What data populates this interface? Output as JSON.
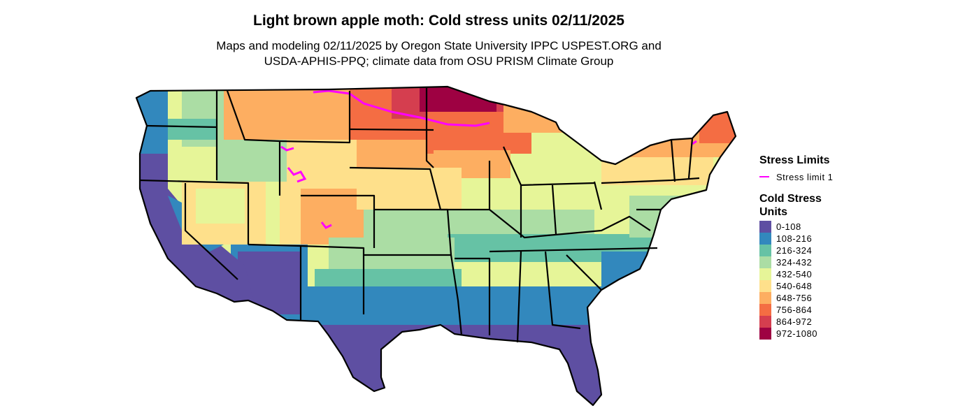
{
  "title": "Light brown apple moth: Cold stress units 02/11/2025",
  "subtitle_line1": "Maps and modeling 02/11/2025 by Oregon State University IPPC USPEST.ORG and",
  "subtitle_line2": "USDA-APHIS-PPQ; climate data from OSU PRISM Climate Group",
  "legend": {
    "stress_title": "Stress Limits",
    "stress_items": [
      {
        "label": "Stress limit 1",
        "color": "#ff00ff"
      }
    ],
    "cold_title": "Cold Stress Units",
    "cold_items": [
      {
        "label": "0-108",
        "color": "#5e4fa2"
      },
      {
        "label": "108-216",
        "color": "#3288bd"
      },
      {
        "label": "216-324",
        "color": "#66c2a5"
      },
      {
        "label": "324-432",
        "color": "#abdda4"
      },
      {
        "label": "432-540",
        "color": "#e6f598"
      },
      {
        "label": "540-648",
        "color": "#fee08b"
      },
      {
        "label": "648-756",
        "color": "#fdae61"
      },
      {
        "label": "756-864",
        "color": "#f46d43"
      },
      {
        "label": "864-972",
        "color": "#d53e4f"
      },
      {
        "label": "972-1080",
        "color": "#9e0142"
      }
    ]
  }
}
